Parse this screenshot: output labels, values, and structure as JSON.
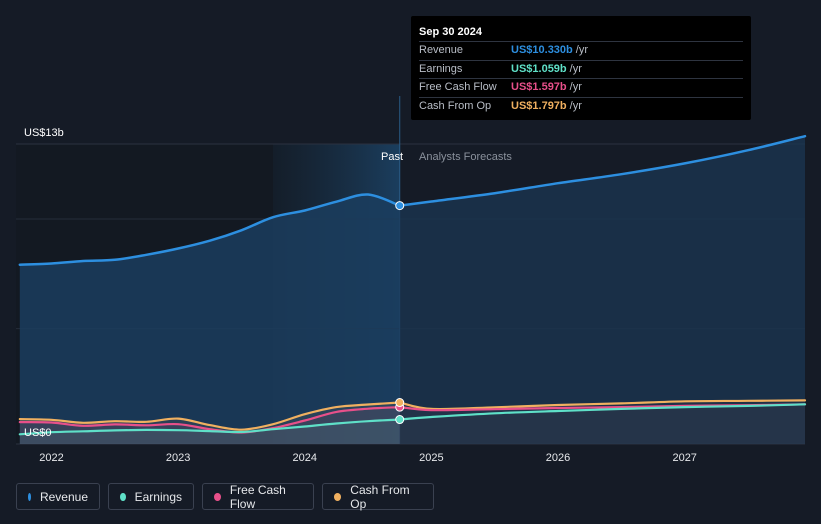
{
  "tooltip": {
    "date": "Sep 30 2024",
    "rows": [
      {
        "label": "Revenue",
        "value": "US$10.330b",
        "unit": "/yr",
        "color": "#2d8fe0"
      },
      {
        "label": "Earnings",
        "value": "US$1.059b",
        "unit": "/yr",
        "color": "#5fe0c8"
      },
      {
        "label": "Free Cash Flow",
        "value": "US$1.597b",
        "unit": "/yr",
        "color": "#e8508a"
      },
      {
        "label": "Cash From Op",
        "value": "US$1.797b",
        "unit": "/yr",
        "color": "#f0b060"
      }
    ]
  },
  "chart_data": {
    "type": "line",
    "title": "",
    "xlabel": "",
    "ylabel": "",
    "ylim": [
      0,
      13
    ],
    "xlim": [
      2021.72,
      2027.95
    ],
    "y_tick_labels": [
      {
        "value": 13,
        "label": "US$13b"
      },
      {
        "value": 0,
        "label": "US$0"
      }
    ],
    "x_ticks": [
      {
        "value": 2022.0,
        "label": "2022"
      },
      {
        "value": 2023.0,
        "label": "2023"
      },
      {
        "value": 2024.0,
        "label": "2024"
      },
      {
        "value": 2025.0,
        "label": "2025"
      },
      {
        "value": 2026.0,
        "label": "2026"
      },
      {
        "value": 2027.0,
        "label": "2027"
      }
    ],
    "divider_x": 2024.75,
    "shaded_start_x": 2023.75,
    "past_label": "Past",
    "forecast_label": "Analysts Forecasts",
    "series": [
      {
        "name": "Revenue",
        "color": "#2d8fe0",
        "points": [
          [
            2021.75,
            7.77
          ],
          [
            2022.0,
            7.82
          ],
          [
            2022.25,
            7.93
          ],
          [
            2022.5,
            7.98
          ],
          [
            2022.75,
            8.2
          ],
          [
            2023.0,
            8.47
          ],
          [
            2023.25,
            8.81
          ],
          [
            2023.5,
            9.26
          ],
          [
            2023.75,
            9.83
          ],
          [
            2024.0,
            10.12
          ],
          [
            2024.25,
            10.5
          ],
          [
            2024.5,
            10.81
          ],
          [
            2024.75,
            10.33
          ]
        ]
      },
      {
        "name": "Earnings",
        "color": "#5fe0c8",
        "points": [
          [
            2021.75,
            0.42
          ],
          [
            2022.0,
            0.51
          ],
          [
            2022.25,
            0.55
          ],
          [
            2022.5,
            0.59
          ],
          [
            2022.75,
            0.61
          ],
          [
            2023.0,
            0.6
          ],
          [
            2023.25,
            0.56
          ],
          [
            2023.5,
            0.52
          ],
          [
            2023.75,
            0.64
          ],
          [
            2024.0,
            0.76
          ],
          [
            2024.25,
            0.89
          ],
          [
            2024.5,
            0.99
          ],
          [
            2024.75,
            1.059
          ]
        ]
      },
      {
        "name": "Free Cash Flow",
        "color": "#e8508a",
        "points": [
          [
            2021.75,
            0.95
          ],
          [
            2022.0,
            0.93
          ],
          [
            2022.25,
            0.79
          ],
          [
            2022.5,
            0.85
          ],
          [
            2022.75,
            0.81
          ],
          [
            2023.0,
            0.86
          ],
          [
            2023.25,
            0.64
          ],
          [
            2023.5,
            0.5
          ],
          [
            2023.75,
            0.69
          ],
          [
            2024.0,
            1.02
          ],
          [
            2024.25,
            1.39
          ],
          [
            2024.5,
            1.53
          ],
          [
            2024.75,
            1.597
          ]
        ]
      },
      {
        "name": "Cash From Op",
        "color": "#f0b060",
        "points": [
          [
            2021.75,
            1.08
          ],
          [
            2022.0,
            1.05
          ],
          [
            2022.25,
            0.92
          ],
          [
            2022.5,
            0.99
          ],
          [
            2022.75,
            0.96
          ],
          [
            2023.0,
            1.1
          ],
          [
            2023.25,
            0.82
          ],
          [
            2023.5,
            0.62
          ],
          [
            2023.75,
            0.86
          ],
          [
            2024.0,
            1.29
          ],
          [
            2024.25,
            1.6
          ],
          [
            2024.5,
            1.71
          ],
          [
            2024.75,
            1.797
          ]
        ]
      }
    ],
    "forecast_series": [
      {
        "name": "Revenue",
        "color": "#2d8fe0",
        "points": [
          [
            2024.75,
            10.33
          ],
          [
            2025.0,
            10.51
          ],
          [
            2025.5,
            10.87
          ],
          [
            2026.0,
            11.3
          ],
          [
            2026.5,
            11.69
          ],
          [
            2027.0,
            12.16
          ],
          [
            2027.5,
            12.73
          ],
          [
            2027.95,
            13.34
          ]
        ]
      },
      {
        "name": "Earnings",
        "color": "#5fe0c8",
        "points": [
          [
            2024.75,
            1.059
          ],
          [
            2025.0,
            1.17
          ],
          [
            2025.5,
            1.33
          ],
          [
            2026.0,
            1.43
          ],
          [
            2026.5,
            1.52
          ],
          [
            2027.0,
            1.6
          ],
          [
            2027.5,
            1.65
          ],
          [
            2027.95,
            1.72
          ]
        ]
      },
      {
        "name": "Free Cash Flow",
        "color": "#e8508a",
        "points": [
          [
            2024.75,
            1.597
          ],
          [
            2025.0,
            1.47
          ],
          [
            2025.5,
            1.51
          ],
          [
            2026.0,
            1.56
          ],
          [
            2026.5,
            1.6
          ],
          [
            2027.0,
            1.65
          ],
          [
            2027.5,
            1.68
          ],
          [
            2027.95,
            1.72
          ]
        ]
      },
      {
        "name": "Cash From Op",
        "color": "#f0b060",
        "points": [
          [
            2024.75,
            1.797
          ],
          [
            2025.0,
            1.52
          ],
          [
            2025.5,
            1.59
          ],
          [
            2026.0,
            1.69
          ],
          [
            2026.5,
            1.76
          ],
          [
            2027.0,
            1.85
          ],
          [
            2027.5,
            1.87
          ],
          [
            2027.95,
            1.89
          ]
        ]
      }
    ]
  },
  "legend": [
    {
      "label": "Revenue",
      "color": "#2d8fe0"
    },
    {
      "label": "Earnings",
      "color": "#5fe0c8"
    },
    {
      "label": "Free Cash Flow",
      "color": "#e8508a"
    },
    {
      "label": "Cash From Op",
      "color": "#f0b060"
    }
  ]
}
